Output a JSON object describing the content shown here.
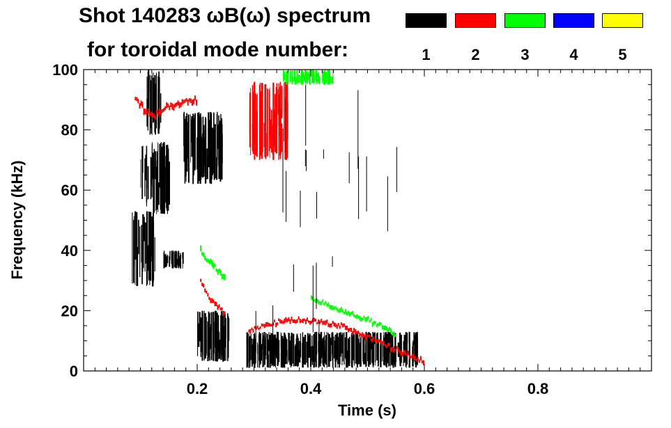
{
  "chart_data": {
    "type": "heatmap",
    "title": "Shot 140283 ωB(ω) spectrum",
    "subtitle": "for toroidal mode number:",
    "xlabel": "Time (s)",
    "ylabel": "Frequency (kHz)",
    "xlim": [
      0.0,
      1.0
    ],
    "ylim": [
      0,
      100
    ],
    "x_ticks": [
      0.2,
      0.4,
      0.6,
      0.8
    ],
    "x_tick_labels": [
      "0.2",
      "0.4",
      "0.6",
      "0.8"
    ],
    "y_ticks": [
      0,
      20,
      40,
      60,
      80,
      100
    ],
    "y_tick_labels": [
      "0",
      "20",
      "40",
      "60",
      "80",
      "100"
    ],
    "legend": [
      {
        "label": "1",
        "color": "#000000"
      },
      {
        "label": "2",
        "color": "#ff0000"
      },
      {
        "label": "3",
        "color": "#00ff00"
      },
      {
        "label": "4",
        "color": "#0000ff"
      },
      {
        "label": "5",
        "color": "#ffff00"
      }
    ],
    "series": [
      {
        "mode": 1,
        "color": "#000000",
        "regions": [
          {
            "t": [
              0.085,
              0.125
            ],
            "f": [
              28,
              53
            ]
          },
          {
            "t": [
              0.1,
              0.15
            ],
            "f": [
              52,
              76
            ]
          },
          {
            "t": [
              0.11,
              0.135
            ],
            "f": [
              78,
              100
            ]
          },
          {
            "t": [
              0.14,
              0.175
            ],
            "f": [
              34,
              40
            ]
          },
          {
            "t": [
              0.175,
              0.245
            ],
            "f": [
              62,
              86
            ]
          },
          {
            "t": [
              0.2,
              0.255
            ],
            "f": [
              3,
              20
            ]
          },
          {
            "t": [
              0.285,
              0.59
            ],
            "f": [
              1,
              13
            ]
          }
        ]
      },
      {
        "mode": 2,
        "color": "#ff0000",
        "ridge": [
          [
            0.09,
            90
          ],
          [
            0.12,
            84
          ],
          [
            0.15,
            88
          ],
          [
            0.2,
            90
          ]
        ],
        "ridge2": [
          [
            0.205,
            30
          ],
          [
            0.22,
            24
          ],
          [
            0.25,
            19
          ]
        ],
        "ridge3": [
          [
            0.29,
            13
          ],
          [
            0.32,
            15
          ],
          [
            0.36,
            17
          ],
          [
            0.4,
            16.5
          ],
          [
            0.45,
            15
          ],
          [
            0.5,
            11
          ],
          [
            0.55,
            7
          ],
          [
            0.6,
            3
          ]
        ],
        "blob": {
          "t": [
            0.29,
            0.36
          ],
          "f": [
            70,
            96
          ]
        }
      },
      {
        "mode": 3,
        "color": "#00ff00",
        "blob": {
          "t": [
            0.35,
            0.44
          ],
          "f": [
            95,
            100
          ]
        },
        "ridge": [
          [
            0.205,
            40
          ],
          [
            0.22,
            36
          ],
          [
            0.25,
            30
          ]
        ],
        "ridge2": [
          [
            0.4,
            24
          ],
          [
            0.45,
            20
          ],
          [
            0.5,
            17
          ],
          [
            0.55,
            12
          ]
        ]
      },
      {
        "mode": 4,
        "color": "#0000ff",
        "regions": []
      },
      {
        "mode": 5,
        "color": "#ffff00",
        "regions": []
      }
    ]
  }
}
